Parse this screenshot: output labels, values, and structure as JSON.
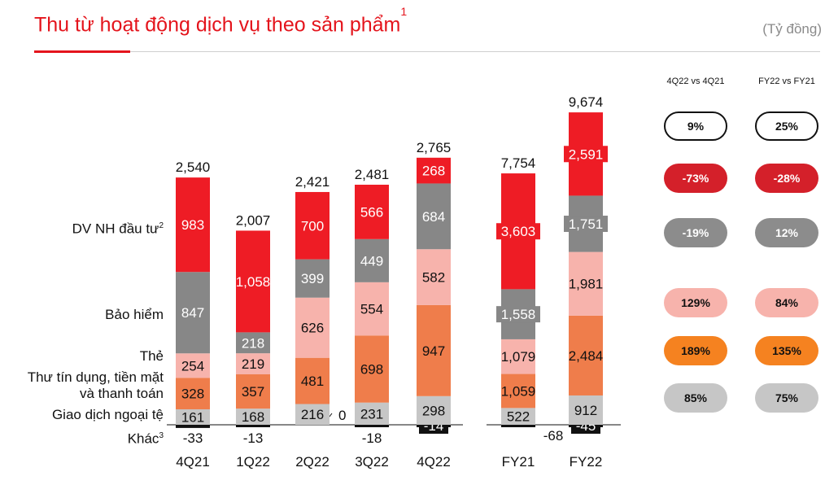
{
  "title": "Thu từ hoạt động dịch vụ theo sản phẩm",
  "title_note": "1",
  "unit": "(Tỷ đồng)",
  "chart_data": {
    "type": "bar",
    "stacked": true,
    "categories": [
      "4Q21",
      "1Q22",
      "2Q22",
      "3Q22",
      "4Q22",
      "FY21",
      "FY22"
    ],
    "totals": [
      "2,540",
      "2,007",
      "2,421",
      "2,481",
      "2,765",
      "7,754",
      "9,674"
    ],
    "series": [
      {
        "name": "Khác",
        "note": "3",
        "color": "#111111",
        "values": [
          -33,
          -13,
          0,
          -18,
          -14,
          -68,
          -45
        ],
        "labels": [
          "-33",
          "-13",
          "0",
          "-18",
          "-14",
          "-68",
          "-45"
        ]
      },
      {
        "name": "Giao dịch ngoại tệ",
        "color": "#c6c6c6",
        "values": [
          161,
          168,
          216,
          231,
          298,
          522,
          912
        ],
        "labels": [
          "161",
          "168",
          "216",
          "231",
          "298",
          "522",
          "912"
        ]
      },
      {
        "name": "Thư tín dụng, tiền mặt và thanh toán",
        "color": "#ef7d4b",
        "values": [
          328,
          357,
          481,
          698,
          947,
          1059,
          2484
        ],
        "labels": [
          "328",
          "357",
          "481",
          "698",
          "947",
          "1,059",
          "2,484"
        ]
      },
      {
        "name": "Thẻ",
        "color": "#f7b3ac",
        "values": [
          254,
          219,
          626,
          554,
          582,
          1079,
          1981
        ],
        "labels": [
          "254",
          "219",
          "626",
          "554",
          "582",
          "1,079",
          "1,981"
        ]
      },
      {
        "name": "Bảo hiểm",
        "color": "#878787",
        "values": [
          847,
          218,
          399,
          449,
          684,
          1558,
          1751
        ],
        "labels": [
          "847",
          "218",
          "399",
          "449",
          "684",
          "1,558",
          "1,751"
        ]
      },
      {
        "name": "DV NH đầu tư",
        "note": "2",
        "color": "#ee1c25",
        "values": [
          983,
          1058,
          700,
          566,
          268,
          3603,
          2591
        ],
        "labels": [
          "983",
          "1,058",
          "700",
          "566",
          "268",
          "3,603",
          "2,591"
        ]
      }
    ]
  },
  "category_labels": {
    "dv_nh": "DV NH đầu tư",
    "dv_nh_note": "2",
    "bao_hiem": "Bảo hiểm",
    "the": "Thẻ",
    "thu_tin_dung_1": "Thư tín dụng, tiền mặt",
    "thu_tin_dung_2": "và thanh toán",
    "ngoai_te": "Giao dịch ngoại tệ",
    "khac": "Khác",
    "khac_note": "3"
  },
  "comparison": {
    "headers": [
      "4Q22 vs 4Q21",
      "FY22 vs FY21"
    ],
    "rows": [
      {
        "key": "total",
        "q": "9%",
        "fy": "25%",
        "bg": "#ffffff",
        "fg": "#111111",
        "border": "#111111"
      },
      {
        "key": "dv_nh",
        "q": "-73%",
        "fy": "-28%",
        "bg": "#d4202a",
        "fg": "#ffffff",
        "border": "none"
      },
      {
        "key": "bao_hiem",
        "q": "-19%",
        "fy": "12%",
        "bg": "#8c8c8c",
        "fg": "#ffffff",
        "border": "none"
      },
      {
        "key": "the",
        "q": "129%",
        "fy": "84%",
        "bg": "#f7b3ac",
        "fg": "#111111",
        "border": "none"
      },
      {
        "key": "thu_tin_dung",
        "q": "189%",
        "fy": "135%",
        "bg": "#f58220",
        "fg": "#111111",
        "border": "none"
      },
      {
        "key": "ngoai_te",
        "q": "85%",
        "fy": "75%",
        "bg": "#c6c6c6",
        "fg": "#111111",
        "border": "none"
      }
    ]
  }
}
